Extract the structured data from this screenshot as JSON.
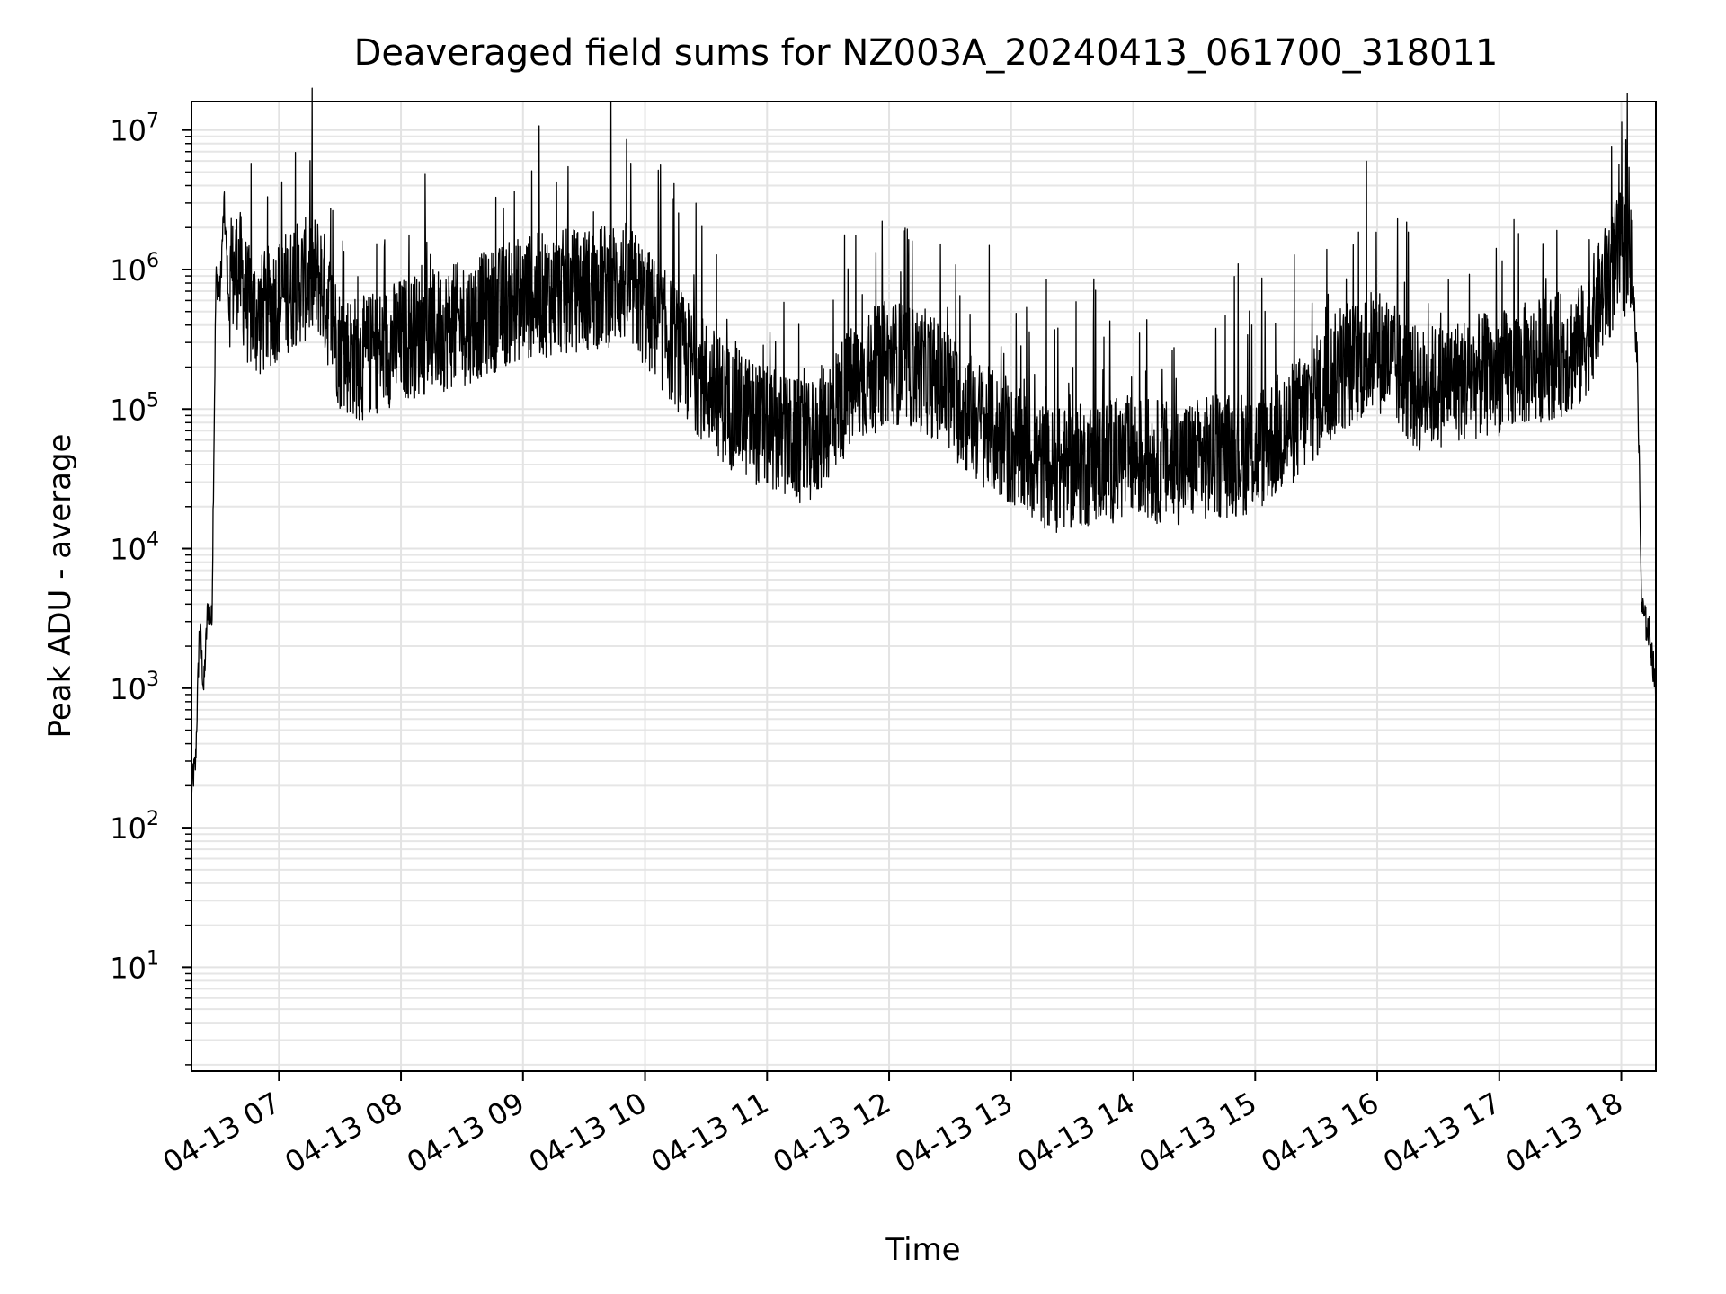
{
  "chart_data": {
    "type": "line",
    "title": "Deaveraged field sums for NZ003A_20240413_061700_318011",
    "xlabel": "Time",
    "ylabel": "Peak ADU - average",
    "yscale": "log",
    "ylim": [
      1.8,
      16000000
    ],
    "xlim": [
      "04-13 06:17",
      "04-13 18:17"
    ],
    "grid": true,
    "line_color": "#000000",
    "x_ticks": [
      "04-13 07",
      "04-13 08",
      "04-13 09",
      "04-13 10",
      "04-13 11",
      "04-13 12",
      "04-13 13",
      "04-13 14",
      "04-13 15",
      "04-13 16",
      "04-13 17",
      "04-13 18"
    ],
    "y_ticks": [
      {
        "value": 10,
        "base": "10",
        "exp": "1"
      },
      {
        "value": 100,
        "base": "10",
        "exp": "2"
      },
      {
        "value": 1000,
        "base": "10",
        "exp": "3"
      },
      {
        "value": 10000,
        "base": "10",
        "exp": "4"
      },
      {
        "value": 100000,
        "base": "10",
        "exp": "5"
      },
      {
        "value": 1000000,
        "base": "10",
        "exp": "6"
      },
      {
        "value": 10000000,
        "base": "10",
        "exp": "7"
      }
    ],
    "series": [
      {
        "x": [
          "06:17",
          "06:19",
          "06:21",
          "06:23",
          "06:25",
          "06:27",
          "06:29",
          "06:31",
          "06:33",
          "06:35",
          "06:40",
          "06:45",
          "06:50",
          "07:00",
          "07:10",
          "07:20",
          "07:30",
          "07:40",
          "08:00",
          "08:30",
          "09:00",
          "09:30",
          "09:50",
          "10:00",
          "10:20",
          "10:40",
          "11:00",
          "11:20",
          "11:40",
          "12:00",
          "12:20",
          "12:40",
          "13:00",
          "13:20",
          "13:40",
          "14:00",
          "14:20",
          "14:40",
          "15:00",
          "15:20",
          "15:40",
          "16:00",
          "16:20",
          "16:40",
          "17:00",
          "17:20",
          "17:40",
          "17:50",
          "18:00",
          "18:05",
          "18:08",
          "18:10",
          "18:12",
          "18:14",
          "18:17"
        ],
        "y": [
          200,
          300,
          3000,
          1000,
          4000,
          3000,
          900000,
          700000,
          3000000,
          800000,
          1200000,
          600000,
          500000,
          700000,
          900000,
          1000000,
          300000,
          250000,
          350000,
          450000,
          700000,
          800000,
          900000,
          600000,
          250000,
          120000,
          80000,
          60000,
          150000,
          250000,
          200000,
          100000,
          60000,
          40000,
          45000,
          50000,
          45000,
          50000,
          55000,
          90000,
          200000,
          300000,
          150000,
          180000,
          200000,
          250000,
          300000,
          700000,
          1500000,
          1200000,
          200000,
          4000,
          3000,
          2500,
          1000
        ]
      }
    ]
  }
}
